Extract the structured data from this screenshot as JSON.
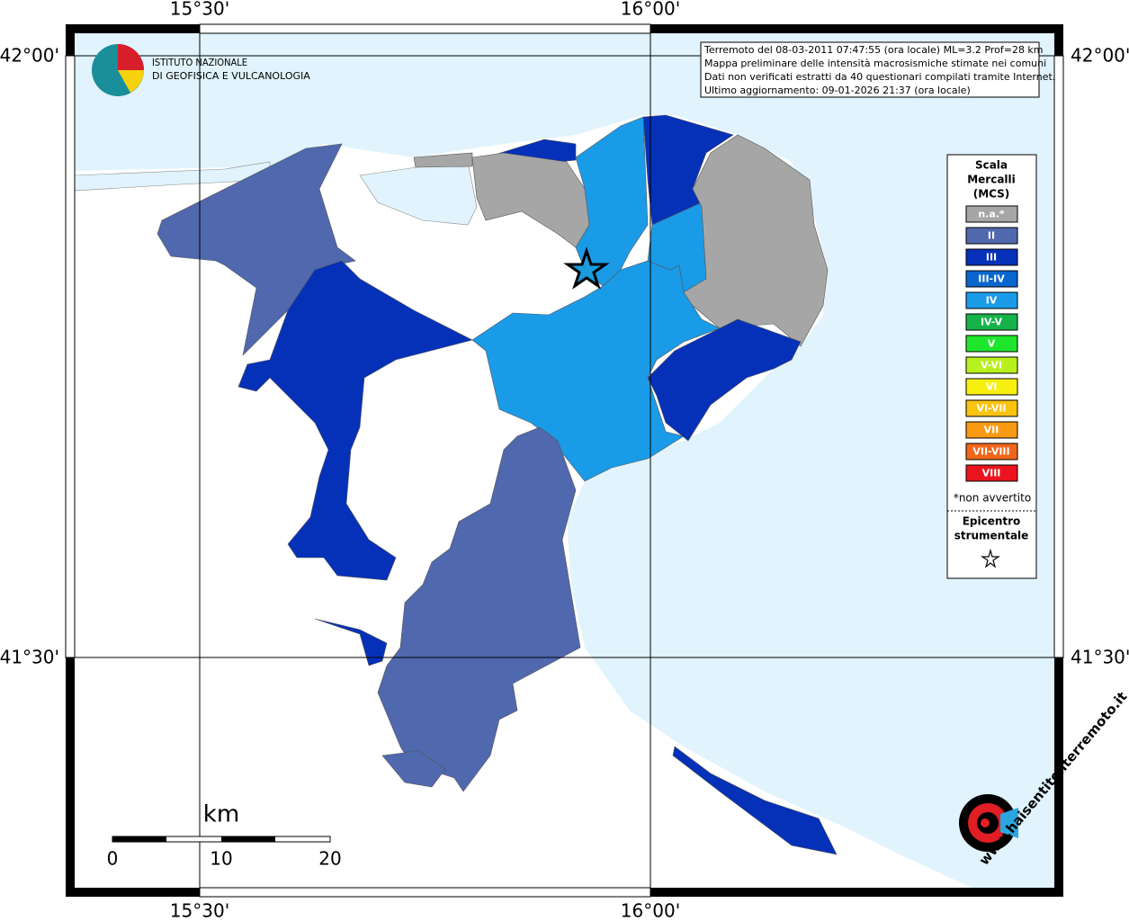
{
  "graticule": {
    "lon": [
      "15°30'",
      "16°00'"
    ],
    "lat": [
      "42°00'",
      "41°30'"
    ]
  },
  "logo": {
    "line1": "ISTITUTO NAZIONALE",
    "line2": "DI GEOFISICA E VULCANOLOGIA",
    "site": "www.haisentitoilterremoto.it"
  },
  "info_box": {
    "lines": [
      "Terremoto del 08-03-2011 07:47:55 (ora locale) ML=3.2 Prof=28 km",
      "Mappa preliminare delle intensità macrosismiche stimate nei comuni",
      "Dati non verificati estratti da 40 questionari compilati tramite Internet.",
      "Ultimo aggiornamento: 09-01-2026 21:37 (ora locale)"
    ]
  },
  "legend": {
    "title": [
      "Scala",
      "Mercalli",
      "(MCS)"
    ],
    "items": [
      {
        "label": "n.a.*",
        "color": "#a6a6a6"
      },
      {
        "label": "II",
        "color": "#5068ae"
      },
      {
        "label": "III",
        "color": "#0531b9"
      },
      {
        "label": "III-IV",
        "color": "#0a66cf"
      },
      {
        "label": "IV",
        "color": "#1a9be8"
      },
      {
        "label": "IV-V",
        "color": "#16b34a"
      },
      {
        "label": "V",
        "color": "#1ee62c"
      },
      {
        "label": "V-VI",
        "color": "#b8f01e"
      },
      {
        "label": "VI",
        "color": "#f7f00f"
      },
      {
        "label": "VI-VII",
        "color": "#f9c30f"
      },
      {
        "label": "VII",
        "color": "#f99a12"
      },
      {
        "label": "VII-VIII",
        "color": "#f2661a"
      },
      {
        "label": "VIII",
        "color": "#eb141e"
      }
    ],
    "note": "*non avvertito",
    "epicenter": [
      "Epicentro",
      "strumentale"
    ]
  },
  "scale_bar": {
    "unit": "km",
    "ticks": [
      "0",
      "10",
      "20"
    ]
  }
}
